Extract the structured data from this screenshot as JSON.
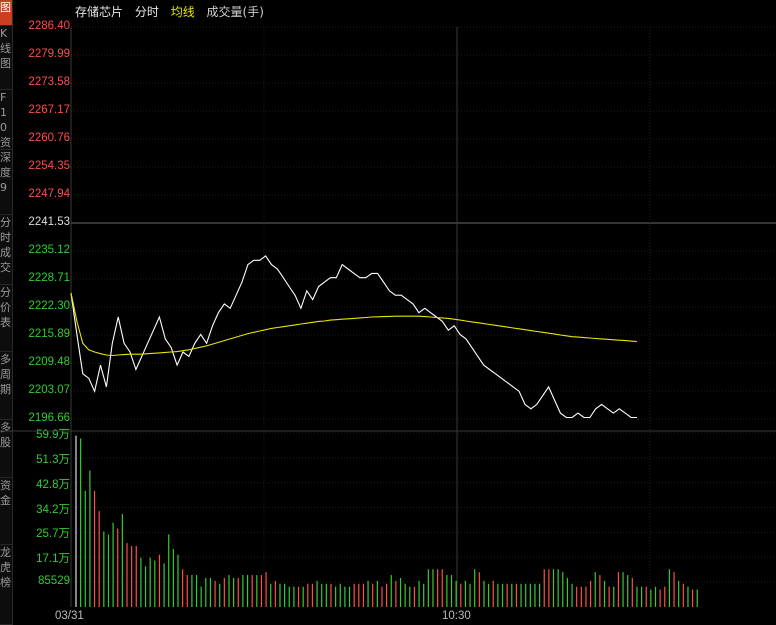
{
  "sidebar": {
    "items": [
      {
        "label": "图",
        "active": true
      },
      {
        "label": "K线图"
      },
      {
        "label": "F10资料"
      },
      {
        "label": "深度9"
      },
      {
        "label": "分时成交"
      },
      {
        "label": "分价表"
      },
      {
        "label": "多周期"
      },
      {
        "label": "多股"
      },
      {
        "label": "资金"
      },
      {
        "label": "龙虎榜"
      }
    ]
  },
  "header": {
    "name": "存储芯片",
    "mode": "分时",
    "ma_label": "均线",
    "volume_label": "成交量(手)"
  },
  "colors": {
    "up": "#ff4d4d",
    "down": "#33cc33",
    "neutral": "#dddddd",
    "price_line": "#ffffff",
    "avg_line": "#e6e600",
    "grid": "#1f1f1f",
    "mid_line": "#555555"
  },
  "chart_data": [
    {
      "type": "line",
      "title": "",
      "y_ticks": [
        "2286.40",
        "2279.99",
        "2273.58",
        "2267.17",
        "2260.76",
        "2254.35",
        "2247.94",
        "2241.53",
        "2235.12",
        "2228.71",
        "2222.30",
        "2215.89",
        "2209.48",
        "2203.07",
        "2196.66"
      ],
      "ylim": [
        2196.66,
        2286.4
      ],
      "prev_close": 2241.53,
      "x_labels": [
        "03/31",
        "10:30"
      ],
      "series": [
        {
          "name": "",
          "values": [
            2225.5,
            2216,
            2207,
            2206,
            2203,
            2209,
            2204,
            2214,
            2220,
            2214,
            2212,
            2208,
            2211,
            2214,
            2217,
            2220,
            2215,
            2213,
            2209,
            2212,
            2211,
            2214,
            2216,
            2214,
            2218,
            2221,
            2223,
            2222,
            2225,
            2228,
            2232,
            2233,
            2233,
            2234,
            2232,
            2231,
            2229,
            2227,
            2225,
            2222,
            2226,
            2224,
            2227,
            2228,
            2229,
            2229,
            2232,
            2231,
            2230,
            2229,
            2229,
            2230,
            2230,
            2228,
            2226,
            2225,
            2225,
            2224,
            2223,
            2221,
            2222,
            2221,
            2220,
            2219,
            2217,
            2218,
            2216,
            2215,
            2213,
            2211,
            2209,
            2208,
            2207,
            2206,
            2205,
            2204,
            2203,
            2200,
            2199,
            2200,
            2202,
            2204,
            2201,
            2198,
            2197,
            2197,
            2198,
            2197,
            2197,
            2199,
            2200,
            2199,
            2198,
            2199,
            2198,
            2197,
            2197
          ]
        },
        {
          "name": "均线",
          "values": [
            2225.5,
            2219,
            2214,
            2212.5,
            2212,
            2211.6,
            2211.3,
            2211.2,
            2211.3,
            2211.4,
            2211.5,
            2211.5,
            2211.5,
            2211.6,
            2211.7,
            2211.8,
            2211.9,
            2212.0,
            2212.1,
            2212.3,
            2212.5,
            2212.8,
            2213.1,
            2213.4,
            2213.8,
            2214.2,
            2214.6,
            2215.0,
            2215.4,
            2215.8,
            2216.2,
            2216.5,
            2216.8,
            2217.1,
            2217.4,
            2217.6,
            2217.8,
            2218.0,
            2218.2,
            2218.4,
            2218.6,
            2218.8,
            2219.0,
            2219.1,
            2219.3,
            2219.4,
            2219.5,
            2219.6,
            2219.7,
            2219.8,
            2219.9,
            2220.0,
            2220.05,
            2220.1,
            2220.15,
            2220.2,
            2220.2,
            2220.2,
            2220.2,
            2220.2,
            2220.1,
            2220.0,
            2219.9,
            2219.8,
            2219.7,
            2219.5,
            2219.3,
            2219.1,
            2218.9,
            2218.7,
            2218.5,
            2218.3,
            2218.1,
            2217.9,
            2217.7,
            2217.5,
            2217.3,
            2217.1,
            2216.9,
            2216.7,
            2216.5,
            2216.3,
            2216.1,
            2215.9,
            2215.7,
            2215.5,
            2215.4,
            2215.3,
            2215.2,
            2215.1,
            2215.0,
            2214.9,
            2214.8,
            2214.7,
            2214.6,
            2214.5,
            2214.4
          ]
        }
      ]
    },
    {
      "type": "bar",
      "title": "",
      "y_ticks": [
        "59.9万",
        "51.3万",
        "42.8万",
        "34.2万",
        "25.7万",
        "17.1万",
        "85529"
      ],
      "ylim": [
        0,
        599000
      ],
      "volume": [
        590000,
        580000,
        400000,
        470000,
        400000,
        330000,
        260000,
        250000,
        290000,
        270000,
        320000,
        220000,
        210000,
        210000,
        170000,
        140000,
        170000,
        160000,
        180000,
        150000,
        250000,
        200000,
        180000,
        130000,
        110000,
        110000,
        110000,
        70000,
        100000,
        100000,
        90000,
        80000,
        100000,
        110000,
        100000,
        100000,
        110000,
        110000,
        110000,
        110000,
        110000,
        120000,
        80000,
        90000,
        80000,
        80000,
        70000,
        70000,
        70000,
        70000,
        80000,
        80000,
        90000,
        80000,
        80000,
        80000,
        70000,
        80000,
        70000,
        70000,
        80000,
        80000,
        80000,
        90000,
        80000,
        90000,
        70000,
        80000,
        110000,
        90000,
        100000,
        80000,
        70000,
        70000,
        90000,
        80000,
        130000,
        130000,
        130000,
        130000,
        110000,
        110000,
        90000,
        80000,
        90000,
        80000,
        130000,
        120000,
        90000,
        80000,
        90000,
        80000,
        80000,
        80000,
        80000,
        80000,
        80000,
        80000,
        80000,
        80000,
        80000,
        130000,
        130000,
        130000,
        130000,
        120000,
        100000,
        80000,
        70000,
        70000,
        70000,
        90000,
        120000,
        110000,
        90000,
        70000,
        70000,
        120000,
        120000,
        110000,
        100000,
        70000,
        70000,
        70000,
        60000,
        70000,
        60000,
        70000,
        130000,
        120000,
        90000,
        80000,
        70000,
        60000,
        60000
      ],
      "direction": [
        "n",
        "d",
        "d",
        "d",
        "u",
        "u",
        "d",
        "d",
        "d",
        "u",
        "d",
        "u",
        "u",
        "u",
        "d",
        "d",
        "d",
        "d",
        "u",
        "d",
        "d",
        "d",
        "d",
        "u",
        "u",
        "d",
        "d",
        "d",
        "d",
        "d",
        "u",
        "d",
        "u",
        "d",
        "d",
        "u",
        "d",
        "d",
        "u",
        "d",
        "u",
        "u",
        "d",
        "u",
        "d",
        "d",
        "d",
        "d",
        "u",
        "d",
        "u",
        "u",
        "d",
        "d",
        "d",
        "u",
        "d",
        "d",
        "d",
        "d",
        "u",
        "u",
        "u",
        "d",
        "u",
        "d",
        "u",
        "u",
        "d",
        "u",
        "d",
        "d",
        "d",
        "u",
        "d",
        "d",
        "d",
        "d",
        "u",
        "u",
        "d",
        "d",
        "d",
        "u",
        "d",
        "d",
        "d",
        "u",
        "d",
        "d",
        "u",
        "d",
        "d",
        "u",
        "d",
        "u",
        "d",
        "d",
        "d",
        "d",
        "d",
        "u",
        "u",
        "d",
        "d",
        "d",
        "d",
        "d",
        "u",
        "u",
        "u",
        "u",
        "d",
        "u",
        "d",
        "u",
        "d",
        "u",
        "d",
        "d",
        "u",
        "d",
        "d",
        "u",
        "d",
        "d",
        "u",
        "u",
        "d",
        "u",
        "d",
        "u",
        "d",
        "u",
        "d"
      ]
    }
  ]
}
